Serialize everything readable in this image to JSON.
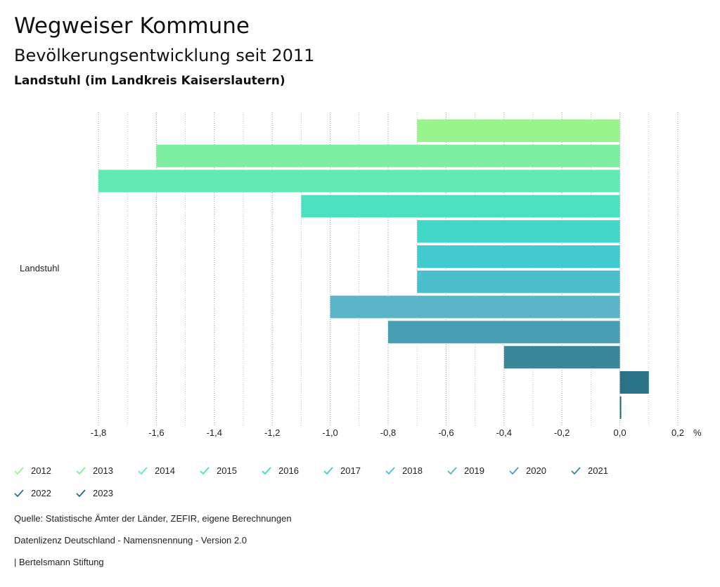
{
  "header": {
    "title": "Wegweiser Kommune",
    "subtitle": "Bevölkerungsentwicklung seit 2011",
    "region": "Landstuhl (im Landkreis Kaiserslautern)"
  },
  "chart_data": {
    "type": "bar",
    "orientation": "horizontal",
    "categories": [
      "Landstuhl"
    ],
    "unit": "%",
    "xlim": [
      -1.8,
      0.2
    ],
    "xticks": [
      "-1,8",
      "-1,6",
      "-1,4",
      "-1,2",
      "-1,0",
      "-0,8",
      "-0,6",
      "-0,4",
      "-0,2",
      "0,0",
      "0,2"
    ],
    "grid": true,
    "legend_position": "bottom",
    "series": [
      {
        "name": "2012",
        "values": [
          -0.7
        ],
        "color": "#98f58e"
      },
      {
        "name": "2013",
        "values": [
          -1.6
        ],
        "color": "#7eeea0"
      },
      {
        "name": "2014",
        "values": [
          -1.8
        ],
        "color": "#62e8b1"
      },
      {
        "name": "2015",
        "values": [
          -1.1
        ],
        "color": "#4de0c0"
      },
      {
        "name": "2016",
        "values": [
          -0.7
        ],
        "color": "#41d6c8"
      },
      {
        "name": "2017",
        "values": [
          -0.7
        ],
        "color": "#42cbcf"
      },
      {
        "name": "2018",
        "values": [
          -0.7
        ],
        "color": "#4cbfcf"
      },
      {
        "name": "2019",
        "values": [
          -1.0
        ],
        "color": "#5ab5c8"
      },
      {
        "name": "2020",
        "values": [
          -0.8
        ],
        "color": "#489fb3"
      },
      {
        "name": "2021",
        "values": [
          -0.4
        ],
        "color": "#398799"
      },
      {
        "name": "2022",
        "values": [
          0.1
        ],
        "color": "#2a7386"
      },
      {
        "name": "2023",
        "values": [
          0.0
        ],
        "color": "#1f6b78"
      }
    ]
  },
  "footer": {
    "source": "Quelle: Statistische Ämter der Länder, ZEFIR, eigene Berechnungen",
    "license": "Datenlizenz Deutschland - Namensnennung - Version 2.0",
    "publisher": "| Bertelsmann Stiftung"
  }
}
